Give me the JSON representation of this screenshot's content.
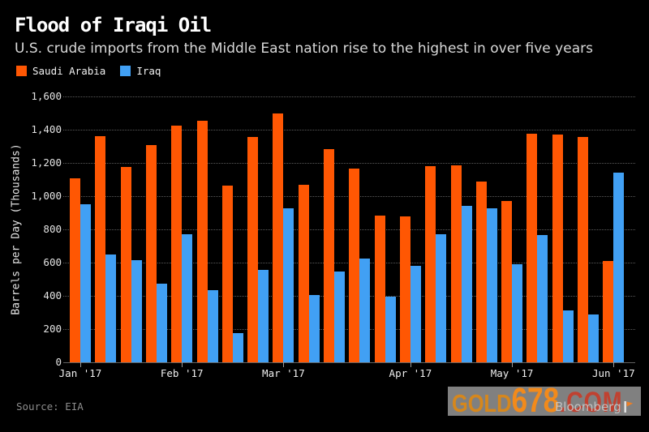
{
  "header": {
    "title": "Flood of Iraqi Oil",
    "subtitle": "U.S. crude imports from the Middle East nation rise to the highest in over five years"
  },
  "legend": {
    "items": [
      {
        "label": "Saudi Arabia",
        "color": "#ff5703"
      },
      {
        "label": "Iraq",
        "color": "#41a0f4"
      }
    ]
  },
  "chart_data": {
    "type": "bar",
    "title": "Flood of Iraqi Oil",
    "subtitle": "U.S. crude imports from the Middle East nation rise to the highest in over five years",
    "ylabel": "Barrels per Day (Thousands)",
    "xlabel": "",
    "ylim": [
      0,
      1600
    ],
    "ytick_values": [
      0,
      200,
      400,
      600,
      800,
      1000,
      1200,
      1400,
      1600
    ],
    "ytick_labels": [
      "0",
      "200",
      "400",
      "600",
      "800",
      "1,000",
      "1,200",
      "1,400",
      "1,600"
    ],
    "grid": "horizontal-dotted",
    "legend_position": "top-left",
    "x_unit": "weekly",
    "x_ticks": [
      {
        "label": "Jan '17",
        "week_index": 0
      },
      {
        "label": "Feb '17",
        "week_index": 4
      },
      {
        "label": "Mar '17",
        "week_index": 8
      },
      {
        "label": "Apr '17",
        "week_index": 13
      },
      {
        "label": "May '17",
        "week_index": 17
      },
      {
        "label": "Jun '17",
        "week_index": 21
      }
    ],
    "series": [
      {
        "name": "Saudi Arabia",
        "color": "#ff5703",
        "values": [
          1105,
          1360,
          1175,
          1305,
          1425,
          1455,
          1065,
          1355,
          1500,
          1070,
          1285,
          1165,
          885,
          880,
          1180,
          1185,
          1090,
          970,
          1375,
          1370,
          1355,
          610
        ]
      },
      {
        "name": "Iraq",
        "color": "#41a0f4",
        "values": [
          950,
          650,
          615,
          475,
          770,
          435,
          175,
          555,
          925,
          405,
          545,
          625,
          395,
          580,
          770,
          940,
          925,
          590,
          765,
          310,
          290,
          1140
        ]
      }
    ]
  },
  "footer": {
    "source": "Source: EIA",
    "brand": "Bloomberg"
  },
  "watermark": {
    "gold": "GOLD",
    "num": "678",
    "com": ".COM",
    "box_color": "#808080",
    "gold_color": "#d6871c",
    "num_color": "#f28a1b",
    "com_color": "#c04130"
  }
}
